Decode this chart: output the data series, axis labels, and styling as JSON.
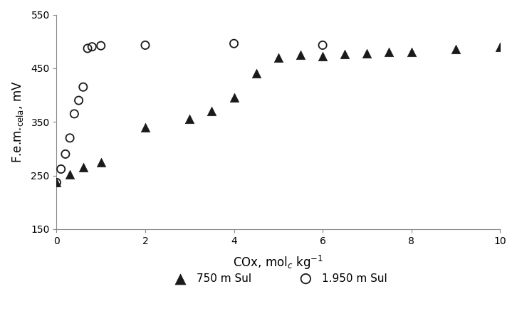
{
  "series1_label": "750 m Sul",
  "series1_marker": "^",
  "series1_color": "#1a1a1a",
  "series1_x": [
    0.0,
    0.3,
    0.6,
    1.0,
    2.0,
    3.0,
    3.5,
    4.0,
    4.5,
    5.0,
    5.5,
    6.0,
    6.5,
    7.0,
    7.5,
    8.0,
    9.0,
    10.0
  ],
  "series1_y": [
    237,
    252,
    265,
    275,
    340,
    355,
    370,
    395,
    440,
    470,
    475,
    472,
    477,
    478,
    480,
    480,
    485,
    490
  ],
  "series2_label": "1.950 m Sul",
  "series2_marker": "o",
  "series2_color": "#1a1a1a",
  "series2_x": [
    0.0,
    0.1,
    0.2,
    0.3,
    0.4,
    0.5,
    0.6,
    0.7,
    0.8,
    1.0,
    2.0,
    4.0,
    6.0
  ],
  "series2_y": [
    237,
    262,
    290,
    320,
    365,
    390,
    415,
    487,
    490,
    492,
    493,
    496,
    493
  ],
  "xlim": [
    0,
    10
  ],
  "ylim": [
    150,
    550
  ],
  "xticks": [
    0,
    2,
    4,
    6,
    8,
    10
  ],
  "yticks": [
    150,
    250,
    350,
    450,
    550
  ],
  "background_color": "#ffffff"
}
